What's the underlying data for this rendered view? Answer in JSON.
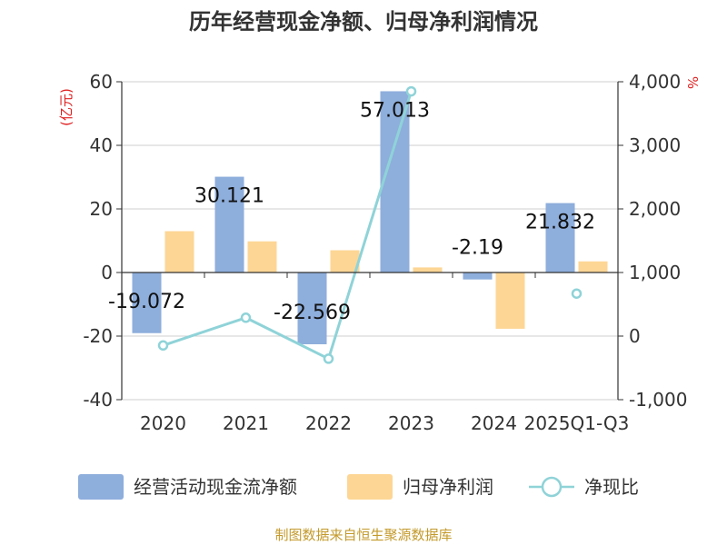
{
  "chart_data": {
    "type": "bar",
    "title": "历年经营现金净额、归母净利润情况",
    "left_axis_unit": "(亿元)",
    "right_axis_unit": "%",
    "categories": [
      "2020",
      "2021",
      "2022",
      "2023",
      "2024",
      "2025Q1-Q3"
    ],
    "ylim_left": [
      -40,
      60
    ],
    "yticks_left": [
      "60",
      "40",
      "20",
      "0",
      "-20",
      "-40"
    ],
    "ylim_right": [
      -1000,
      4000
    ],
    "yticks_right": [
      "4,000",
      "3,000",
      "2,000",
      "1,000",
      "0",
      "-1,000"
    ],
    "grid": true,
    "legend_position": "bottom",
    "series": [
      {
        "name": "经营活动现金流净额",
        "type": "bar",
        "axis": "left",
        "color": "#8eaedc",
        "values": [
          -19.072,
          30.121,
          -22.569,
          57.013,
          -2.19,
          21.832
        ],
        "labels": [
          "-19.072",
          "30.121",
          "-22.569",
          "57.013",
          "-2.19",
          "21.832"
        ]
      },
      {
        "name": "归母净利润",
        "type": "bar",
        "axis": "left",
        "color": "#fdd695",
        "values": [
          13.0,
          9.8,
          7.0,
          1.6,
          -17.7,
          3.5
        ]
      },
      {
        "name": "净现比",
        "type": "line",
        "axis": "right",
        "color": "#8fd3d8",
        "values": [
          -147,
          289,
          -356,
          3849,
          null,
          668
        ]
      }
    ],
    "source": "制图数据来自恒生聚源数据库"
  }
}
